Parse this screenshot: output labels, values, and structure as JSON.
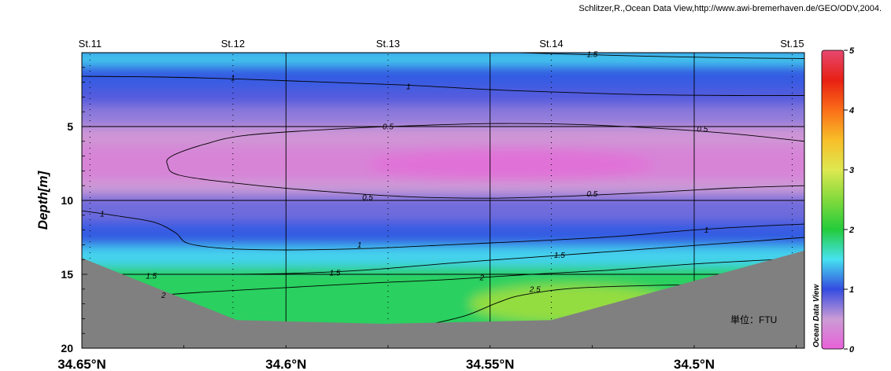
{
  "credit": "Schlitzer,R.,Ocean Data View,http://www.awi-bremerhaven.de/GEO/ODV,2004.",
  "unit_label": "単位：FTU",
  "watermark": "Ocean Data View",
  "chart_data": {
    "type": "heatmap",
    "subtype": "ocean-section-contour",
    "ylabel": "Depth[m]",
    "xlabel": "",
    "x_axis": "latitude",
    "xlim": [
      34.65,
      34.473
    ],
    "x_direction": "decreasing",
    "ylim": [
      0,
      20
    ],
    "y_direction": "inverted",
    "x_ticks": [
      {
        "value": 34.65,
        "label": "34.65°N"
      },
      {
        "value": 34.6,
        "label": "34.6°N"
      },
      {
        "value": 34.55,
        "label": "34.55°N"
      },
      {
        "value": 34.5,
        "label": "34.5°N"
      }
    ],
    "y_ticks": [
      {
        "value": 5,
        "label": "5"
      },
      {
        "value": 10,
        "label": "10"
      },
      {
        "value": 15,
        "label": "15"
      },
      {
        "value": 20,
        "label": "20"
      }
    ],
    "grid": true,
    "stations": [
      {
        "name": "St.11",
        "lat": 34.648
      },
      {
        "name": "St.12",
        "lat": 34.613
      },
      {
        "name": "St.13",
        "lat": 34.575
      },
      {
        "name": "St.14",
        "lat": 34.535
      },
      {
        "name": "St.15",
        "lat": 34.476
      }
    ],
    "colorbar": {
      "min": 0,
      "max": 5,
      "ticks": [
        {
          "value": 0,
          "label": "0"
        },
        {
          "value": 1,
          "label": "1"
        },
        {
          "value": 2,
          "label": "2"
        },
        {
          "value": 3,
          "label": "3"
        },
        {
          "value": 4,
          "label": "4"
        },
        {
          "value": 5,
          "label": "5"
        }
      ],
      "position": "right"
    },
    "bottom_profile": [
      {
        "lat": 34.65,
        "depth": 13.9
      },
      {
        "lat": 34.612,
        "depth": 18.1
      },
      {
        "lat": 34.576,
        "depth": 18.35
      },
      {
        "lat": 34.535,
        "depth": 18.1
      },
      {
        "lat": 34.473,
        "depth": 13.4
      }
    ],
    "contours": [
      {
        "level": 1.5,
        "label": "1.5",
        "points": [
          [
            34.543,
            0.0
          ],
          [
            34.53,
            0.1
          ],
          [
            34.51,
            0.25
          ],
          [
            34.49,
            0.35
          ],
          [
            34.473,
            0.4
          ]
        ]
      },
      {
        "level": 1,
        "label": "1",
        "points": [
          [
            34.65,
            1.6
          ],
          [
            34.63,
            1.65
          ],
          [
            34.61,
            1.8
          ],
          [
            34.59,
            2.0
          ],
          [
            34.57,
            2.2
          ],
          [
            34.55,
            2.5
          ],
          [
            34.53,
            2.7
          ],
          [
            34.51,
            2.85
          ],
          [
            34.49,
            2.9
          ],
          [
            34.473,
            2.9
          ]
        ]
      },
      {
        "level": 0.5,
        "label": "0.5",
        "points": [
          [
            34.473,
            6.0
          ],
          [
            34.49,
            5.5
          ],
          [
            34.51,
            5.1
          ],
          [
            34.53,
            4.85
          ],
          [
            34.55,
            4.8
          ],
          [
            34.57,
            4.95
          ],
          [
            34.59,
            5.2
          ],
          [
            34.61,
            5.6
          ],
          [
            34.62,
            6.2
          ],
          [
            34.628,
            7.0
          ],
          [
            34.629,
            7.6
          ],
          [
            34.626,
            8.3
          ],
          [
            34.61,
            8.9
          ],
          [
            34.59,
            9.4
          ],
          [
            34.57,
            9.75
          ],
          [
            34.55,
            9.85
          ],
          [
            34.53,
            9.7
          ],
          [
            34.51,
            9.45
          ],
          [
            34.49,
            9.15
          ],
          [
            34.473,
            9.0
          ]
        ]
      },
      {
        "level": 1,
        "label": "1",
        "points": [
          [
            34.65,
            10.7
          ],
          [
            34.64,
            11.1
          ],
          [
            34.632,
            11.5
          ],
          [
            34.627,
            12.2
          ],
          [
            34.624,
            12.9
          ],
          [
            34.615,
            13.25
          ],
          [
            34.6,
            13.35
          ],
          [
            34.58,
            13.25
          ],
          [
            34.56,
            13.0
          ],
          [
            34.54,
            12.75
          ],
          [
            34.52,
            12.45
          ],
          [
            34.5,
            12.0
          ],
          [
            34.485,
            11.75
          ],
          [
            34.473,
            11.6
          ]
        ]
      },
      {
        "level": 1.5,
        "label": "1.5",
        "points": [
          [
            34.65,
            15.0
          ],
          [
            34.62,
            15.0
          ],
          [
            34.6,
            14.95
          ],
          [
            34.58,
            14.7
          ],
          [
            34.56,
            14.25
          ],
          [
            34.54,
            13.85
          ],
          [
            34.52,
            13.45
          ],
          [
            34.5,
            13.05
          ],
          [
            34.485,
            12.75
          ],
          [
            34.473,
            12.5
          ]
        ]
      },
      {
        "level": 2,
        "label": "2",
        "points": [
          [
            34.635,
            16.5
          ],
          [
            34.62,
            16.2
          ],
          [
            34.6,
            15.9
          ],
          [
            34.58,
            15.6
          ],
          [
            34.56,
            15.35
          ],
          [
            34.54,
            15.0
          ],
          [
            34.52,
            14.7
          ],
          [
            34.5,
            14.3
          ],
          [
            34.48,
            14.0
          ]
        ]
      },
      {
        "level": 2.5,
        "label": "2.5",
        "points": [
          [
            34.565,
            18.4
          ],
          [
            34.556,
            17.8
          ],
          [
            34.548,
            16.9
          ],
          [
            34.542,
            16.4
          ],
          [
            34.53,
            15.95
          ],
          [
            34.51,
            15.75
          ],
          [
            34.495,
            15.7
          ]
        ]
      }
    ],
    "contour_labels": [
      {
        "text": "1.5",
        "lat": 34.525,
        "depth": 0.1
      },
      {
        "text": "1",
        "lat": 34.613,
        "depth": 1.7
      },
      {
        "text": "1",
        "lat": 34.57,
        "depth": 2.3
      },
      {
        "text": "0.5",
        "lat": 34.575,
        "depth": 5.0
      },
      {
        "text": "0.5",
        "lat": 34.498,
        "depth": 5.15
      },
      {
        "text": "0.5",
        "lat": 34.58,
        "depth": 9.8
      },
      {
        "text": "0.5",
        "lat": 34.525,
        "depth": 9.55
      },
      {
        "text": "1",
        "lat": 34.645,
        "depth": 10.9
      },
      {
        "text": "1",
        "lat": 34.582,
        "depth": 13.0
      },
      {
        "text": "1",
        "lat": 34.497,
        "depth": 12.0
      },
      {
        "text": "1.5",
        "lat": 34.633,
        "depth": 15.1
      },
      {
        "text": "1.5",
        "lat": 34.588,
        "depth": 14.9
      },
      {
        "text": "1.5",
        "lat": 34.533,
        "depth": 13.7
      },
      {
        "text": "2",
        "lat": 34.63,
        "depth": 16.4
      },
      {
        "text": "2",
        "lat": 34.552,
        "depth": 15.2
      },
      {
        "text": "2.5",
        "lat": 34.539,
        "depth": 16.0
      }
    ],
    "field_bands": [
      {
        "value": 1.45,
        "from": 0.0,
        "to": 0.8
      },
      {
        "value": 1.05,
        "from": 0.8,
        "to": 2.4
      },
      {
        "value": 0.9,
        "from": 2.4,
        "to": 3.6
      },
      {
        "value": 0.7,
        "from": 3.6,
        "to": 5.0
      },
      {
        "value": 0.45,
        "from": 5.0,
        "to": 6.3
      },
      {
        "value": 0.3,
        "from": 6.3,
        "to": 8.7
      },
      {
        "value": 0.5,
        "from": 8.7,
        "to": 9.6
      },
      {
        "value": 0.8,
        "from": 9.6,
        "to": 11.4
      },
      {
        "value": 1.05,
        "from": 11.4,
        "to": 13.1
      },
      {
        "value": 1.45,
        "from": 13.1,
        "to": 14.5
      },
      {
        "value": 1.9,
        "from": 14.5,
        "to": 20.0
      }
    ],
    "hotspots": [
      {
        "value": 0.15,
        "lat": 34.545,
        "depth": 7.6,
        "rx_lat": 0.035,
        "ry_depth": 1.1
      },
      {
        "value": 2.6,
        "lat": 34.53,
        "depth": 17.0,
        "rx_lat": 0.025,
        "ry_depth": 1.3
      }
    ]
  }
}
